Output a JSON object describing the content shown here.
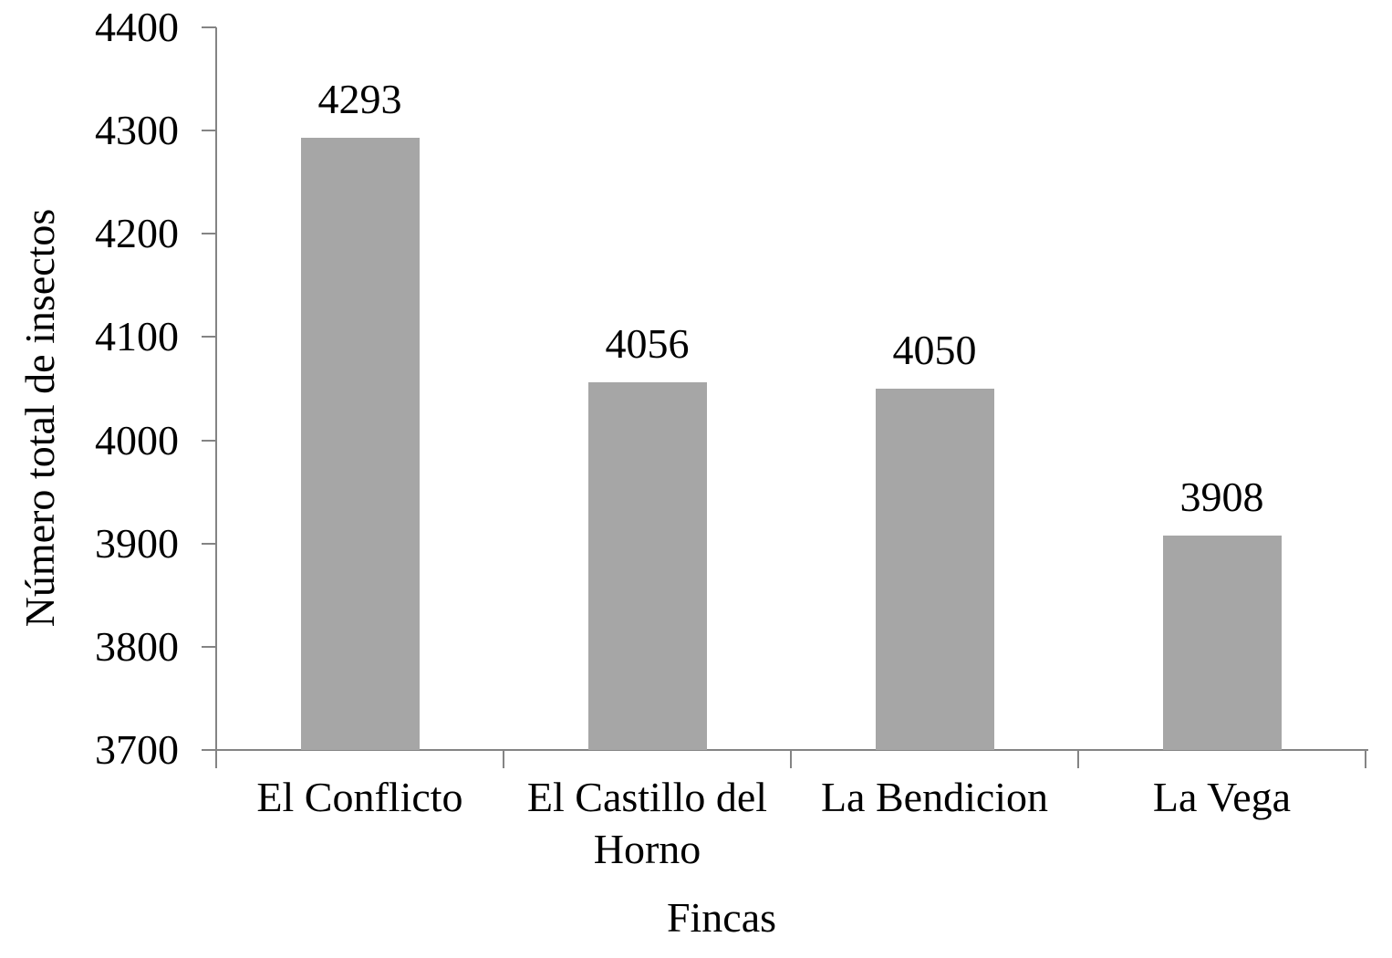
{
  "chart_data": {
    "type": "bar",
    "title": "",
    "xlabel": "Fincas",
    "ylabel": "Número total de insectos",
    "categories": [
      "El Conflicto",
      "El Castillo del Horno",
      "La Bendicion",
      "La Vega"
    ],
    "values": [
      4293,
      4056,
      4050,
      3908
    ],
    "data_labels": [
      "4293",
      "4056",
      "4050",
      "3908"
    ],
    "ylim": [
      3700,
      4400
    ],
    "ytick_step": 100,
    "yticks": [
      "3700",
      "3800",
      "3900",
      "4000",
      "4100",
      "4200",
      "4300",
      "4400"
    ],
    "grid": false,
    "legend": false,
    "bar_color": "#a6a6a6",
    "axis_color": "#848484",
    "text_color": "#000000",
    "background": "#ffffff"
  }
}
